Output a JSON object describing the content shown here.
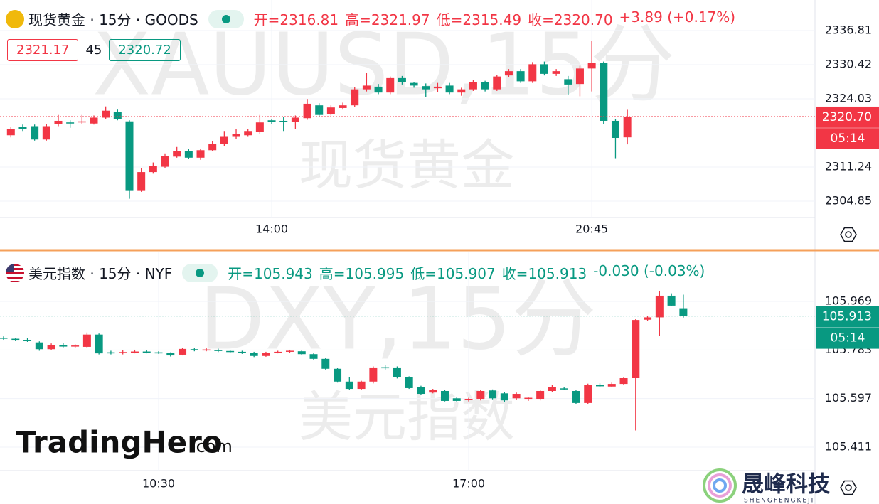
{
  "chart_data": [
    {
      "type": "candlestick",
      "title": "现货黄金 · 15分 · GOODS",
      "watermark": "XAUUSD,15分",
      "watermark_name": "现货黄金",
      "ohlc_header": [
        "开=2316.81",
        "高=2321.97",
        "低=2315.49",
        "收=2320.70",
        "+3.89 (+0.17%)"
      ],
      "header_color": "#f23645",
      "buttons": [
        "2321.17",
        "45",
        "2320.72"
      ],
      "up_color": "#f23645",
      "down_color": "#089981",
      "categories": [
        null,
        null,
        null,
        null,
        null,
        null,
        null,
        null,
        null,
        null,
        null,
        null,
        null,
        null,
        null,
        null,
        null,
        null,
        null,
        null,
        null,
        null,
        "14:00",
        null,
        null,
        null,
        null,
        null,
        null,
        null,
        null,
        null,
        null,
        null,
        null,
        null,
        null,
        null,
        null,
        null,
        null,
        null,
        null,
        null,
        null,
        null,
        null,
        null,
        null,
        "20:45",
        null,
        null,
        null
      ],
      "open": [
        2317.2,
        2318.8,
        2318.9,
        2316.4,
        2319.3,
        2319.6,
        2319.6,
        2319.4,
        2320.5,
        2321.6,
        2319.8,
        2306.9,
        2310.3,
        2311.3,
        2313.2,
        2314.3,
        2313.0,
        2314.4,
        2315.6,
        2316.9,
        2317.2,
        2317.8,
        2320.0,
        2319.9,
        2319.7,
        2320.4,
        2322.8,
        2321.2,
        2322.3,
        2322.8,
        2325.8,
        2326.3,
        2325.2,
        2327.9,
        2327.0,
        2326.4,
        2326.0,
        2326.5,
        2325.2,
        2325.8,
        2327.1,
        2325.8,
        2328.4,
        2329.2,
        2327.3,
        2330.5,
        2328.7,
        2327.7,
        2326.8,
        2329.7,
        2330.8,
        2319.9,
        2316.81
      ],
      "high": [
        2318.8,
        2319.2,
        2319.2,
        2319.3,
        2321.0,
        2320.0,
        2321.0,
        2320.9,
        2322.6,
        2322.0,
        2320.0,
        2311.0,
        2312.1,
        2313.8,
        2315.0,
        2314.6,
        2314.7,
        2316.1,
        2318.0,
        2318.3,
        2318.4,
        2321.0,
        2320.3,
        2320.6,
        2320.9,
        2324.0,
        2323.2,
        2322.8,
        2323.3,
        2326.2,
        2328.9,
        2326.8,
        2328.2,
        2328.3,
        2327.2,
        2326.9,
        2327.0,
        2327.0,
        2326.1,
        2327.6,
        2327.4,
        2328.5,
        2329.6,
        2329.6,
        2330.9,
        2331.0,
        2329.6,
        2328.3,
        2330.2,
        2334.9,
        2331.0,
        2320.3,
        2321.97
      ],
      "low": [
        2316.8,
        2318.0,
        2316.2,
        2316.2,
        2318.9,
        2318.6,
        2319.3,
        2319.2,
        2320.3,
        2320.0,
        2305.3,
        2306.6,
        2310.0,
        2311.0,
        2313.0,
        2312.8,
        2312.6,
        2314.2,
        2315.2,
        2316.5,
        2316.9,
        2317.5,
        2319.3,
        2318.0,
        2318.4,
        2320.1,
        2320.7,
        2320.9,
        2322.0,
        2322.5,
        2325.4,
        2324.9,
        2324.9,
        2326.7,
        2326.1,
        2324.3,
        2325.3,
        2324.9,
        2324.6,
        2325.5,
        2325.4,
        2325.5,
        2328.1,
        2327.0,
        2327.0,
        2328.4,
        2328.3,
        2324.7,
        2324.5,
        2325.4,
        2319.3,
        2312.9,
        2315.49
      ],
      "close": [
        2318.3,
        2318.4,
        2316.4,
        2318.9,
        2319.9,
        2319.5,
        2319.8,
        2320.5,
        2321.8,
        2320.2,
        2306.9,
        2310.3,
        2311.5,
        2313.3,
        2314.3,
        2313.0,
        2314.4,
        2315.6,
        2316.9,
        2317.5,
        2318.0,
        2319.6,
        2319.7,
        2319.8,
        2320.5,
        2323.1,
        2321.0,
        2322.4,
        2322.8,
        2325.8,
        2326.5,
        2325.2,
        2327.9,
        2327.1,
        2326.5,
        2325.8,
        2326.3,
        2325.2,
        2325.8,
        2327.1,
        2325.8,
        2328.2,
        2329.2,
        2327.3,
        2330.5,
        2328.7,
        2329.2,
        2326.7,
        2329.7,
        2330.8,
        2319.9,
        2316.7,
        2320.7
      ],
      "ylim": [
        2301.79,
        2342.53
      ],
      "yticks": [
        2336.81,
        2330.42,
        2324.03,
        2311.24,
        2304.85
      ],
      "grid": true,
      "last_price": {
        "value": 2320.7,
        "label": "2320.70"
      },
      "countdown": "05:14"
    },
    {
      "type": "candlestick",
      "title": "美元指数 · 15分 · NYF",
      "watermark": "DXY,15分",
      "watermark_name": "美元指数",
      "ohlc_header": [
        "开=105.943",
        "高=105.995",
        "低=105.907",
        "收=105.913",
        "-0.030 (-0.03%)"
      ],
      "header_color": "#089981",
      "up_color": "#f23645",
      "down_color": "#089981",
      "categories": [
        null,
        null,
        null,
        null,
        null,
        null,
        null,
        null,
        null,
        null,
        null,
        null,
        null,
        "10:30",
        null,
        null,
        null,
        null,
        null,
        null,
        null,
        null,
        null,
        null,
        null,
        null,
        null,
        null,
        null,
        null,
        null,
        null,
        null,
        null,
        null,
        null,
        null,
        null,
        null,
        "17:00",
        null,
        null,
        null,
        null,
        null,
        null,
        null,
        null,
        null,
        null,
        null,
        null,
        null,
        null,
        null,
        null,
        null,
        null
      ],
      "open": [
        105.83,
        105.826,
        105.822,
        105.812,
        105.786,
        105.803,
        105.796,
        105.795,
        105.842,
        105.774,
        105.771,
        105.775,
        105.777,
        105.774,
        105.771,
        105.765,
        105.786,
        105.782,
        105.783,
        105.779,
        105.776,
        105.773,
        105.76,
        105.773,
        105.776,
        105.778,
        105.767,
        105.749,
        105.711,
        105.662,
        105.634,
        105.662,
        105.717,
        105.716,
        105.678,
        105.642,
        105.62,
        105.626,
        105.598,
        105.593,
        105.596,
        105.628,
        105.617,
        105.598,
        105.596,
        105.596,
        105.626,
        105.636,
        105.626,
        105.58,
        105.648,
        105.643,
        105.653,
        105.675,
        105.899,
        105.908,
        105.991,
        105.943
      ],
      "high": [
        105.835,
        105.83,
        105.828,
        105.816,
        105.808,
        105.81,
        105.805,
        105.85,
        105.846,
        105.78,
        105.782,
        105.784,
        105.782,
        105.778,
        105.774,
        105.79,
        105.79,
        105.79,
        105.788,
        105.784,
        105.78,
        105.776,
        105.776,
        105.78,
        105.784,
        105.781,
        105.77,
        105.752,
        105.714,
        105.68,
        105.665,
        105.72,
        105.724,
        105.72,
        105.682,
        105.646,
        105.634,
        105.63,
        105.602,
        105.6,
        105.63,
        105.632,
        105.622,
        105.62,
        105.602,
        105.631,
        105.648,
        105.642,
        105.63,
        105.654,
        105.655,
        105.658,
        105.68,
        105.901,
        105.912,
        106.01,
        106.0,
        105.995
      ],
      "low": [
        105.822,
        105.818,
        105.814,
        105.78,
        105.782,
        105.793,
        105.79,
        105.79,
        105.766,
        105.766,
        105.766,
        105.77,
        105.77,
        105.768,
        105.758,
        105.762,
        105.778,
        105.778,
        105.775,
        105.772,
        105.768,
        105.756,
        105.757,
        105.77,
        105.772,
        105.764,
        105.746,
        105.708,
        105.658,
        105.63,
        105.63,
        105.655,
        105.708,
        105.674,
        105.634,
        105.612,
        105.617,
        105.586,
        105.584,
        105.586,
        105.59,
        105.594,
        105.585,
        105.592,
        105.588,
        105.59,
        105.622,
        105.63,
        105.576,
        105.576,
        105.64,
        105.64,
        105.65,
        105.475,
        105.894,
        105.838,
        105.95,
        105.907
      ],
      "close": [
        105.826,
        105.822,
        105.818,
        105.786,
        105.803,
        105.796,
        105.8,
        105.842,
        105.77,
        105.771,
        105.775,
        105.777,
        105.773,
        105.771,
        105.762,
        105.787,
        105.782,
        105.785,
        105.779,
        105.776,
        105.773,
        105.76,
        105.773,
        105.776,
        105.78,
        105.767,
        105.749,
        105.711,
        105.662,
        105.634,
        105.662,
        105.716,
        105.714,
        105.678,
        105.637,
        105.615,
        105.631,
        105.588,
        105.588,
        105.596,
        105.626,
        105.598,
        105.59,
        105.615,
        105.6,
        105.626,
        105.642,
        105.634,
        105.58,
        105.65,
        105.645,
        105.653,
        105.675,
        105.898,
        105.908,
        105.991,
        105.953,
        105.913
      ],
      "ylim": [
        105.321,
        106.157
      ],
      "yticks": [
        105.969,
        105.783,
        105.597,
        105.411
      ],
      "grid": true,
      "last_price": {
        "value": 105.913,
        "label": "105.913"
      },
      "countdown": "05:14"
    }
  ],
  "logo": {
    "brand": "TradingHero",
    "suffix": ".com"
  },
  "stamp": {
    "name": "晟峰科技",
    "pinyin": "SHENGFENGKEJI"
  }
}
